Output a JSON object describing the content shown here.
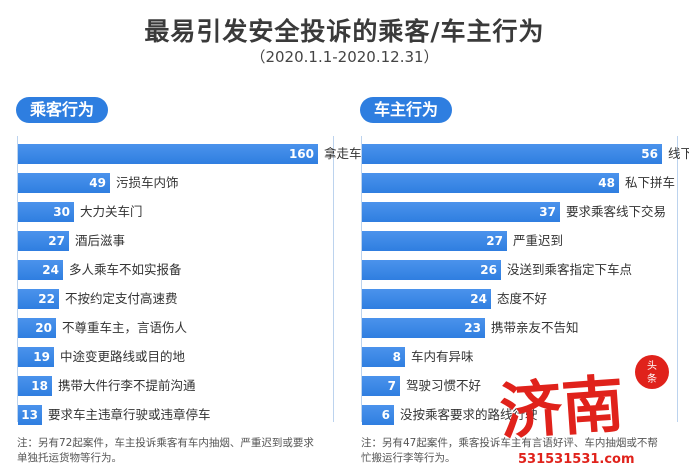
{
  "header": {
    "title": "最易引发安全投诉的乘客/车主行为",
    "subtitle": "（2020.1.1-2020.12.31）"
  },
  "chart_data": [
    {
      "type": "bar",
      "orientation": "horizontal",
      "title": "乘客行为",
      "categories": [
        "拿走车主随用物品",
        "污损车内饰",
        "大力关车门",
        "酒后滋事",
        "多人乘车不如实报备",
        "不按约定支付高速费",
        "不尊重车主，言语伤人",
        "中途变更路线或目的地",
        "携带大件行李不提前沟通",
        "要求车主违章行驶或违章停车"
      ],
      "values": [
        160,
        49,
        30,
        27,
        24,
        22,
        20,
        19,
        18,
        13
      ],
      "note": "注：另有72起案件，车主投诉乘客有车内抽烟、严重迟到或要求单独托运货物等行为。"
    },
    {
      "type": "bar",
      "orientation": "horizontal",
      "title": "车主行为",
      "categories": [
        "线下加价",
        "私下拼车",
        "要求乘客线下交易",
        "严重迟到",
        "没送到乘客指定下车点",
        "态度不好",
        "携带亲友不告知",
        "车内有异味",
        "驾驶习惯不好",
        "没按乘客要求的路线行驶"
      ],
      "values": [
        56,
        48,
        37,
        27,
        26,
        24,
        23,
        8,
        7,
        6
      ],
      "note": "注：另有47起案件，乘客投诉车主有言语好评、车内抽烟或不帮忙搬运行李等行为。"
    }
  ],
  "colors": {
    "bar": "#2f7ee0",
    "pill": "#2e7ee0",
    "frame": "#bcd3ee"
  },
  "watermark": {
    "text": "济南",
    "badge": "头条",
    "number": "531531531.com"
  }
}
